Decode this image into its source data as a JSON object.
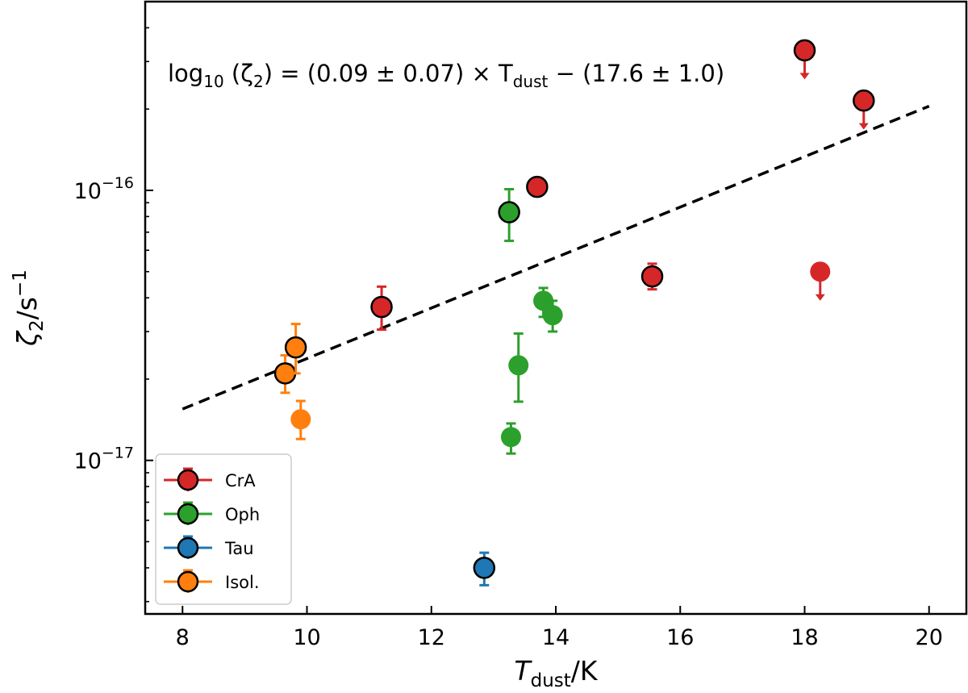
{
  "chart_data": {
    "type": "scatter",
    "xlabel": {
      "main": "T",
      "sub": "dust",
      "rest": "/K"
    },
    "ylabel": {
      "main": "ζ",
      "sub": "2",
      "rest": "/s",
      "sup": "−1"
    },
    "xlim": [
      7.4,
      20.6
    ],
    "ylim": [
      2.7e-18,
      5e-16
    ],
    "yscale": "log",
    "xticks": [
      8,
      10,
      12,
      14,
      16,
      18,
      20
    ],
    "yticks": [
      {
        "value": 1e-16,
        "base": "10",
        "exp": "−16"
      },
      {
        "value": 1e-17,
        "base": "10",
        "exp": "−17"
      }
    ],
    "grid": false,
    "legend": {
      "position": "lower-left"
    },
    "fit": {
      "x": [
        8,
        20
      ],
      "y": [
        1.55e-17,
        2.05e-16
      ],
      "style": "dashed",
      "equation": {
        "prefix": "log",
        "prefix_sub": "10",
        "arg_open": " (ζ",
        "arg_sub": "2",
        "mid": ") = (0.09 ± 0.07) × T",
        "t_sub": "dust",
        "tail": " − (17.6 ± 1.0)"
      }
    },
    "series": [
      {
        "name": "CrA",
        "color": "#d62728",
        "points": [
          {
            "x": 11.2,
            "y": 3.7e-17,
            "lo": 3.05e-17,
            "hi": 4.4e-17,
            "edge": true
          },
          {
            "x": 13.7,
            "y": 1.03e-16,
            "edge": true
          },
          {
            "x": 15.55,
            "y": 4.8e-17,
            "lo": 4.3e-17,
            "hi": 5.35e-17,
            "edge": true
          },
          {
            "x": 18.0,
            "y": 3.3e-16,
            "upper": true,
            "edge": true
          },
          {
            "x": 18.95,
            "y": 2.15e-16,
            "upper": true,
            "edge": true
          },
          {
            "x": 18.25,
            "y": 5e-17,
            "upper": true,
            "edge": false
          }
        ]
      },
      {
        "name": "Oph",
        "color": "#2ca02c",
        "points": [
          {
            "x": 13.25,
            "y": 8.3e-17,
            "lo": 6.5e-17,
            "hi": 1.01e-16,
            "edge": true
          },
          {
            "x": 13.8,
            "y": 3.9e-17,
            "lo": 3.4e-17,
            "hi": 4.35e-17,
            "edge": false
          },
          {
            "x": 13.95,
            "y": 3.45e-17,
            "lo": 3e-17,
            "hi": 3.9e-17,
            "edge": false
          },
          {
            "x": 13.4,
            "y": 2.25e-17,
            "lo": 1.65e-17,
            "hi": 2.95e-17,
            "edge": false
          },
          {
            "x": 13.28,
            "y": 1.22e-17,
            "lo": 1.06e-17,
            "hi": 1.37e-17,
            "edge": false
          }
        ]
      },
      {
        "name": "Tau",
        "color": "#1f77b4",
        "points": [
          {
            "x": 12.85,
            "y": 4e-18,
            "lo": 3.45e-18,
            "hi": 4.55e-18,
            "edge": true
          }
        ]
      },
      {
        "name": "Isol.",
        "color": "#ff7f0e",
        "points": [
          {
            "x": 9.65,
            "y": 2.1e-17,
            "lo": 1.78e-17,
            "hi": 2.45e-17,
            "edge": true
          },
          {
            "x": 9.82,
            "y": 2.62e-17,
            "lo": 2.1e-17,
            "hi": 3.2e-17,
            "edge": true
          },
          {
            "x": 9.9,
            "y": 1.42e-17,
            "lo": 1.2e-17,
            "hi": 1.66e-17,
            "edge": false
          }
        ]
      }
    ]
  }
}
